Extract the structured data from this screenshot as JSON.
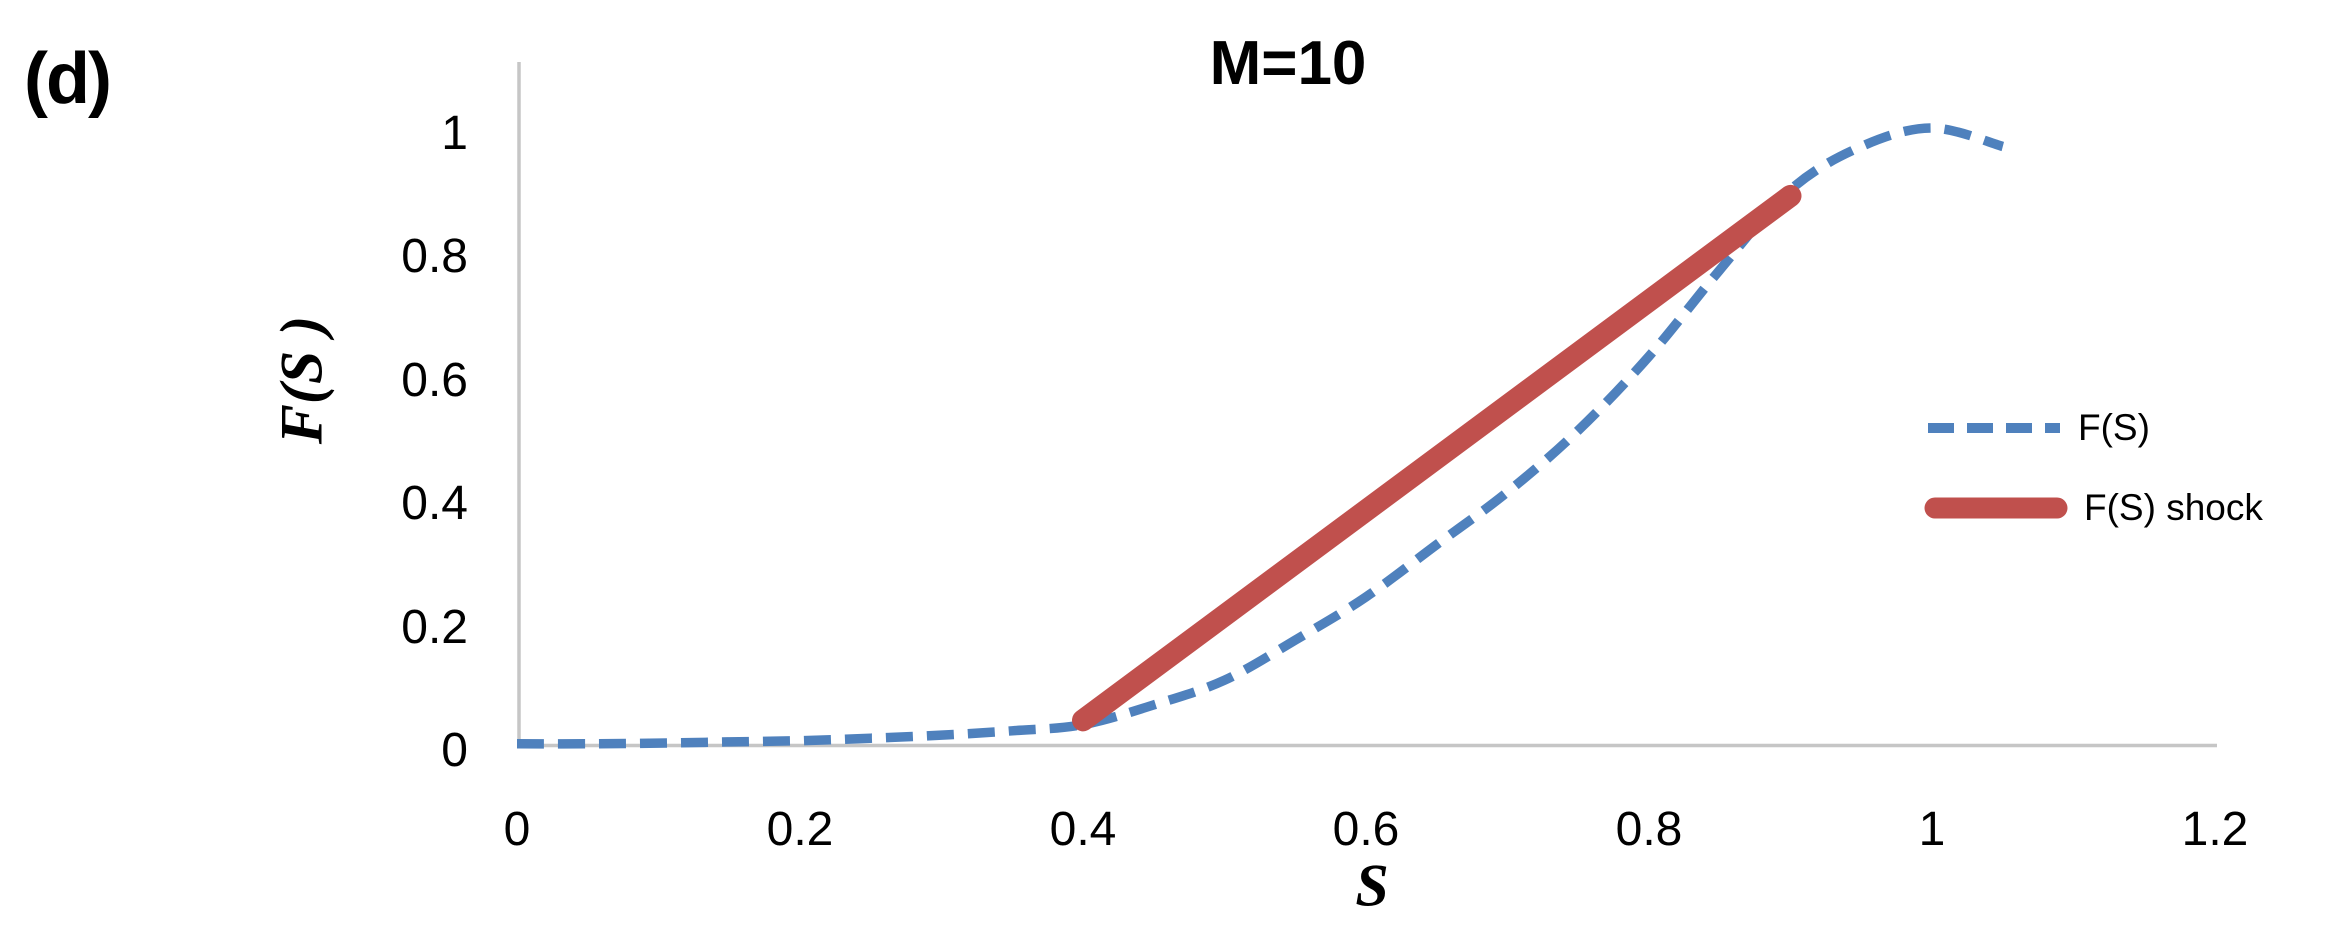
{
  "panel_label": "(d)",
  "colors": {
    "fs_line": "#4F81BD",
    "shock_line": "#C0504D",
    "axis_line": "#C6C6C6",
    "text": "#000000",
    "background": "#FFFFFF"
  },
  "legend": {
    "position": "right",
    "items": [
      {
        "label": "F(S)"
      },
      {
        "label": "F(S) shock"
      }
    ]
  },
  "chart_data": {
    "type": "line",
    "title": "M=10",
    "xlabel": "S",
    "ylabel": "F(S )",
    "xlim": [
      0,
      1.2
    ],
    "ylim": [
      0,
      1
    ],
    "grid": false,
    "legend_position": "right",
    "x_tick_labels": [
      "0",
      "0.2",
      "0.4",
      "0.6",
      "0.8",
      "1",
      "1.2"
    ],
    "x_tick_values": [
      0,
      0.2,
      0.4,
      0.6,
      0.8,
      1,
      1.2
    ],
    "y_tick_labels": [
      "0",
      "0.2",
      "0.4",
      "0.6",
      "0.8",
      "1"
    ],
    "y_tick_values": [
      0,
      0.2,
      0.4,
      0.6,
      0.8,
      1
    ],
    "series": [
      {
        "name": "F(S)",
        "style": "dashed",
        "color": "#4F81BD",
        "x": [
          0,
          0.05,
          0.1,
          0.15,
          0.2,
          0.25,
          0.3,
          0.35,
          0.4,
          0.45,
          0.5,
          0.55,
          0.6,
          0.65,
          0.7,
          0.75,
          0.8,
          0.85,
          0.9,
          0.95,
          1.0,
          1.05
        ],
        "y": [
          0.002,
          0.002,
          0.003,
          0.005,
          0.007,
          0.011,
          0.016,
          0.023,
          0.033,
          0.065,
          0.105,
          0.17,
          0.24,
          0.325,
          0.41,
          0.51,
          0.63,
          0.77,
          0.9,
          0.97,
          1.0,
          0.97
        ]
      },
      {
        "name": "F(S) shock",
        "style": "solid",
        "color": "#C0504D",
        "x": [
          0.4,
          0.9
        ],
        "y": [
          0.04,
          0.89
        ]
      }
    ]
  }
}
